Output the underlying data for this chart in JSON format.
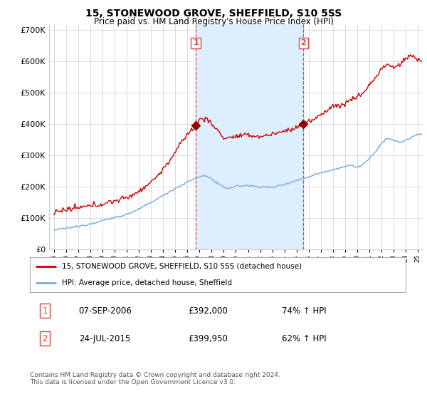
{
  "title": "15, STONEWOOD GROVE, SHEFFIELD, S10 5SS",
  "subtitle": "Price paid vs. HM Land Registry's House Price Index (HPI)",
  "sale1_date": "07-SEP-2006",
  "sale1_price": 392000,
  "sale1_label": "74% ↑ HPI",
  "sale2_date": "24-JUL-2015",
  "sale2_price": 399950,
  "sale2_label": "62% ↑ HPI",
  "sale1_x": 2006.69,
  "sale2_x": 2015.56,
  "legend_line1": "15, STONEWOOD GROVE, SHEFFIELD, S10 5SS (detached house)",
  "legend_line2": "HPI: Average price, detached house, Sheffield",
  "footer": "Contains HM Land Registry data © Crown copyright and database right 2024.\nThis data is licensed under the Open Government Licence v3.0.",
  "hpi_color": "#7aaadd",
  "price_color": "#cc0000",
  "marker_color": "#990000",
  "vline_color": "#dd4444",
  "shade_color": "#ddeeff",
  "grid_color": "#cccccc",
  "background_color": "#ffffff",
  "ylim": [
    0,
    720000
  ],
  "xlim": [
    1994.6,
    2025.4
  ]
}
